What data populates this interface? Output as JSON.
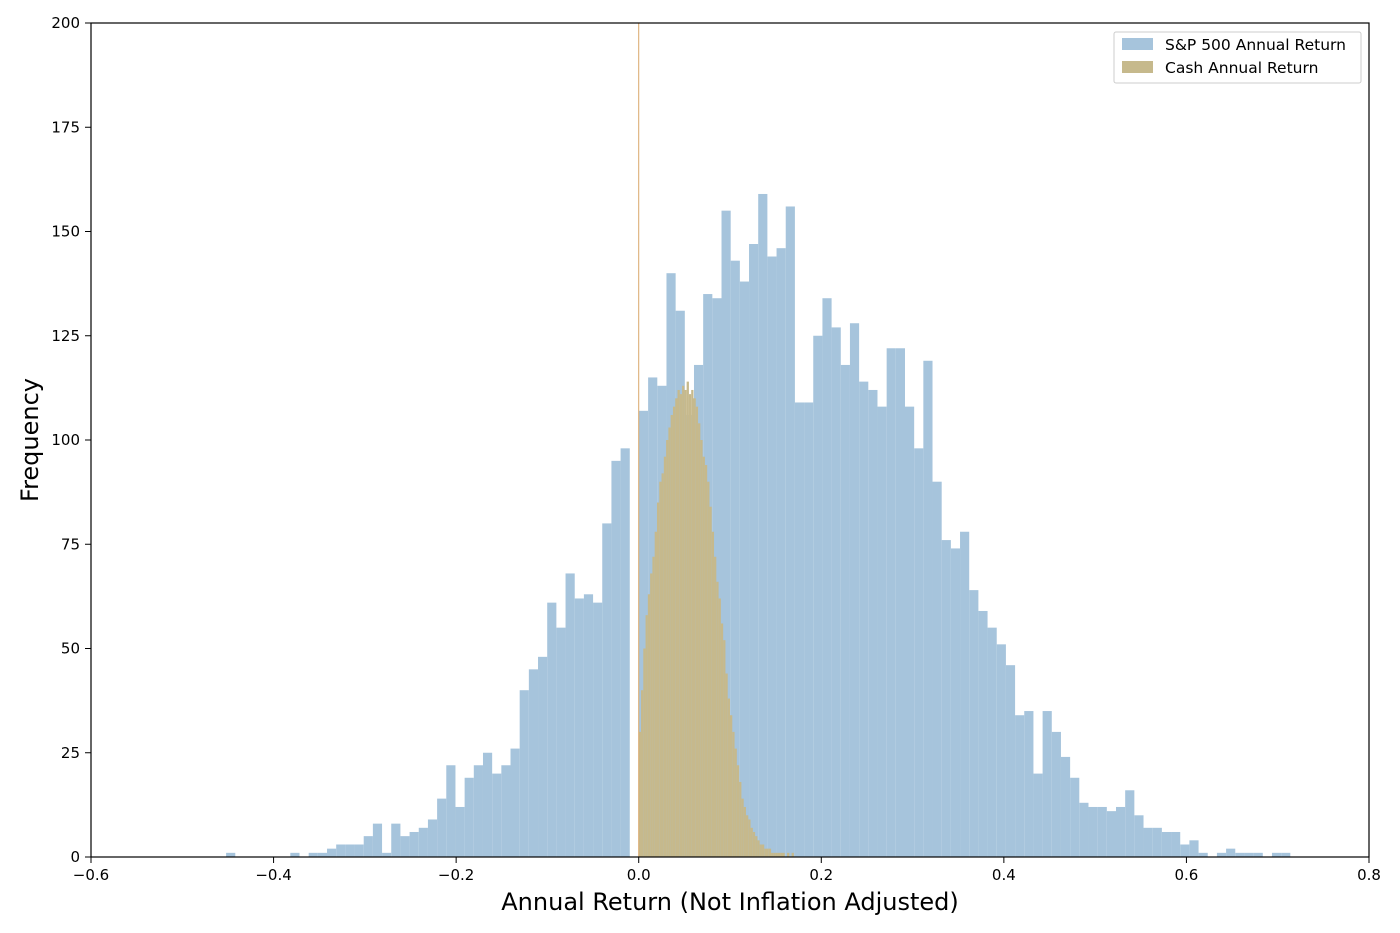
{
  "chart_data": {
    "type": "bar",
    "subtype": "overlaid-histogram",
    "xlabel": "Annual Return (Not Inflation Adjusted)",
    "ylabel": "Frequency",
    "xlim": [
      -0.6,
      0.8
    ],
    "ylim": [
      0,
      200
    ],
    "x_ticks": [
      -0.6,
      -0.4,
      -0.2,
      0.0,
      0.2,
      0.4,
      0.6,
      0.8
    ],
    "x_tick_labels": [
      "−0.6",
      "−0.4",
      "−0.2",
      "0.0",
      "0.2",
      "0.4",
      "0.6",
      "0.8"
    ],
    "y_ticks": [
      0,
      25,
      50,
      75,
      100,
      125,
      150,
      175,
      200
    ],
    "y_tick_labels": [
      "0",
      "25",
      "50",
      "75",
      "100",
      "125",
      "150",
      "175",
      "200"
    ],
    "grid": false,
    "legend_position": "top-right",
    "series": [
      {
        "name": "S&P 500 Annual Return",
        "color": "#a6c4dc",
        "bin_start": -0.452,
        "bin_width": 0.01005,
        "counts": [
          1,
          0,
          0,
          0,
          0,
          0,
          0,
          1,
          0,
          1,
          1,
          2,
          3,
          3,
          3,
          5,
          8,
          1,
          8,
          5,
          6,
          7,
          9,
          14,
          22,
          12,
          19,
          22,
          25,
          20,
          22,
          26,
          40,
          45,
          48,
          61,
          55,
          68,
          62,
          63,
          61,
          80,
          95,
          98,
          0,
          107,
          115,
          113,
          140,
          131,
          106,
          118,
          135,
          134,
          155,
          143,
          138,
          147,
          159,
          144,
          146,
          156,
          109,
          109,
          125,
          134,
          127,
          118,
          128,
          114,
          112,
          108,
          122,
          122,
          108,
          98,
          119,
          90,
          76,
          74,
          78,
          64,
          59,
          55,
          51,
          46,
          34,
          35,
          20,
          35,
          30,
          24,
          19,
          13,
          12,
          12,
          11,
          12,
          16,
          10,
          7,
          7,
          6,
          6,
          3,
          4,
          1,
          0,
          1,
          2,
          1,
          1,
          1,
          0,
          1,
          1
        ],
        "overflow": true
      },
      {
        "name": "Cash Annual Return",
        "color": "#c6b98c",
        "bin_start": 0.0,
        "bin_width": 0.0025,
        "counts": [
          30,
          40,
          50,
          58,
          63,
          68,
          72,
          78,
          85,
          90,
          92,
          96,
          100,
          103,
          106,
          108,
          110,
          112,
          111,
          113,
          112,
          114,
          111,
          112,
          110,
          108,
          104,
          100,
          96,
          94,
          90,
          84,
          78,
          72,
          66,
          62,
          56,
          52,
          44,
          38,
          34,
          30,
          26,
          22,
          18,
          14,
          12,
          10,
          9,
          7,
          6,
          5,
          4,
          3,
          3,
          2,
          2,
          2,
          1,
          1,
          1,
          1,
          1,
          1,
          0,
          1,
          0,
          1,
          0,
          0,
          0,
          0,
          0,
          0,
          0,
          0,
          0,
          0,
          0,
          0
        ],
        "spike": {
          "x": 0.0,
          "value": 200
        }
      }
    ]
  }
}
